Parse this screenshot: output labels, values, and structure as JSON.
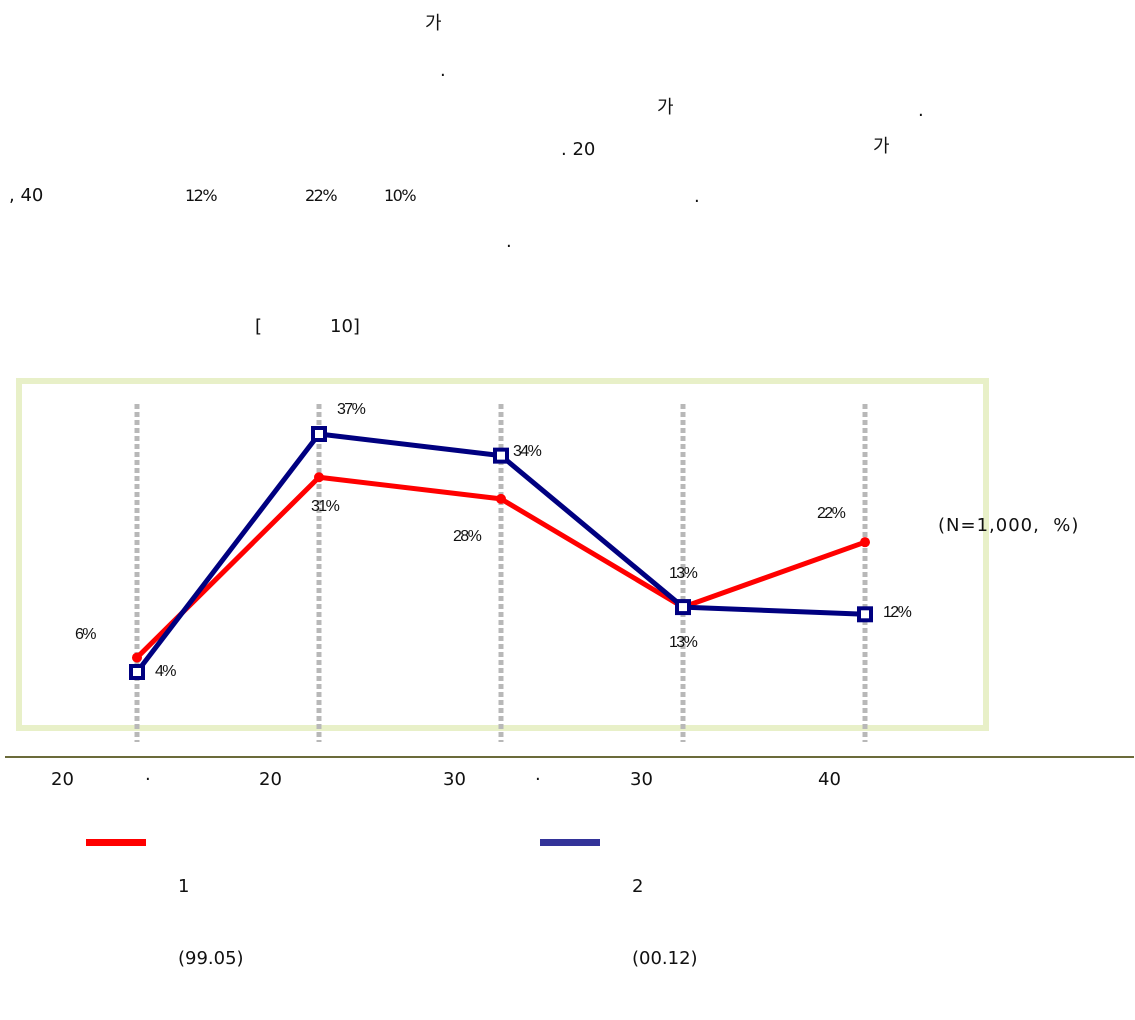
{
  "text_lines": [
    {
      "id": "l1",
      "text": "가"
    },
    {
      "id": "l2",
      "text": "."
    },
    {
      "id": "l3a",
      "text": "가"
    },
    {
      "id": "l3b",
      "text": "."
    },
    {
      "id": "l4a",
      "text": ". 20"
    },
    {
      "id": "l4b",
      "text": "가"
    },
    {
      "id": "l5a",
      "text": ", 40"
    },
    {
      "id": "l5b",
      "text": "12%"
    },
    {
      "id": "l5c",
      "text": "22%"
    },
    {
      "id": "l5d",
      "text": "10%"
    },
    {
      "id": "l5e",
      "text": "."
    },
    {
      "id": "l6",
      "text": "."
    }
  ],
  "figure_caption_open": "[",
  "figure_caption_num": "10]",
  "chart_data": {
    "type": "line",
    "categories": [
      "20 · ",
      "20",
      "30 · ",
      "30",
      "40"
    ],
    "series": [
      {
        "name": "1\n(99.05)",
        "color": "#ff0000",
        "marker": "circle",
        "values": [
          6,
          31,
          28,
          13,
          22
        ],
        "labels": [
          "6%",
          "31%",
          "28%",
          "13%",
          "22%"
        ]
      },
      {
        "name": "2\n(00.12)",
        "color": "#000080",
        "marker": "square",
        "values": [
          4,
          37,
          34,
          13,
          12
        ],
        "labels": [
          "4%",
          "37%",
          "34%",
          "13%",
          "12%"
        ]
      }
    ],
    "note": "(N=1,000,  %)",
    "ylim": [
      0,
      42
    ],
    "grid": "vertical dashed",
    "legend_position": "bottom"
  },
  "x_axis_labels": [
    "20",
    "·",
    "20",
    "30",
    "·",
    "30",
    "40"
  ],
  "legend": [
    {
      "line1": "1",
      "line2": "(99.05)",
      "color": "#ff0000"
    },
    {
      "line1": "2",
      "line2": "(00.12)",
      "color": "#333399"
    }
  ]
}
